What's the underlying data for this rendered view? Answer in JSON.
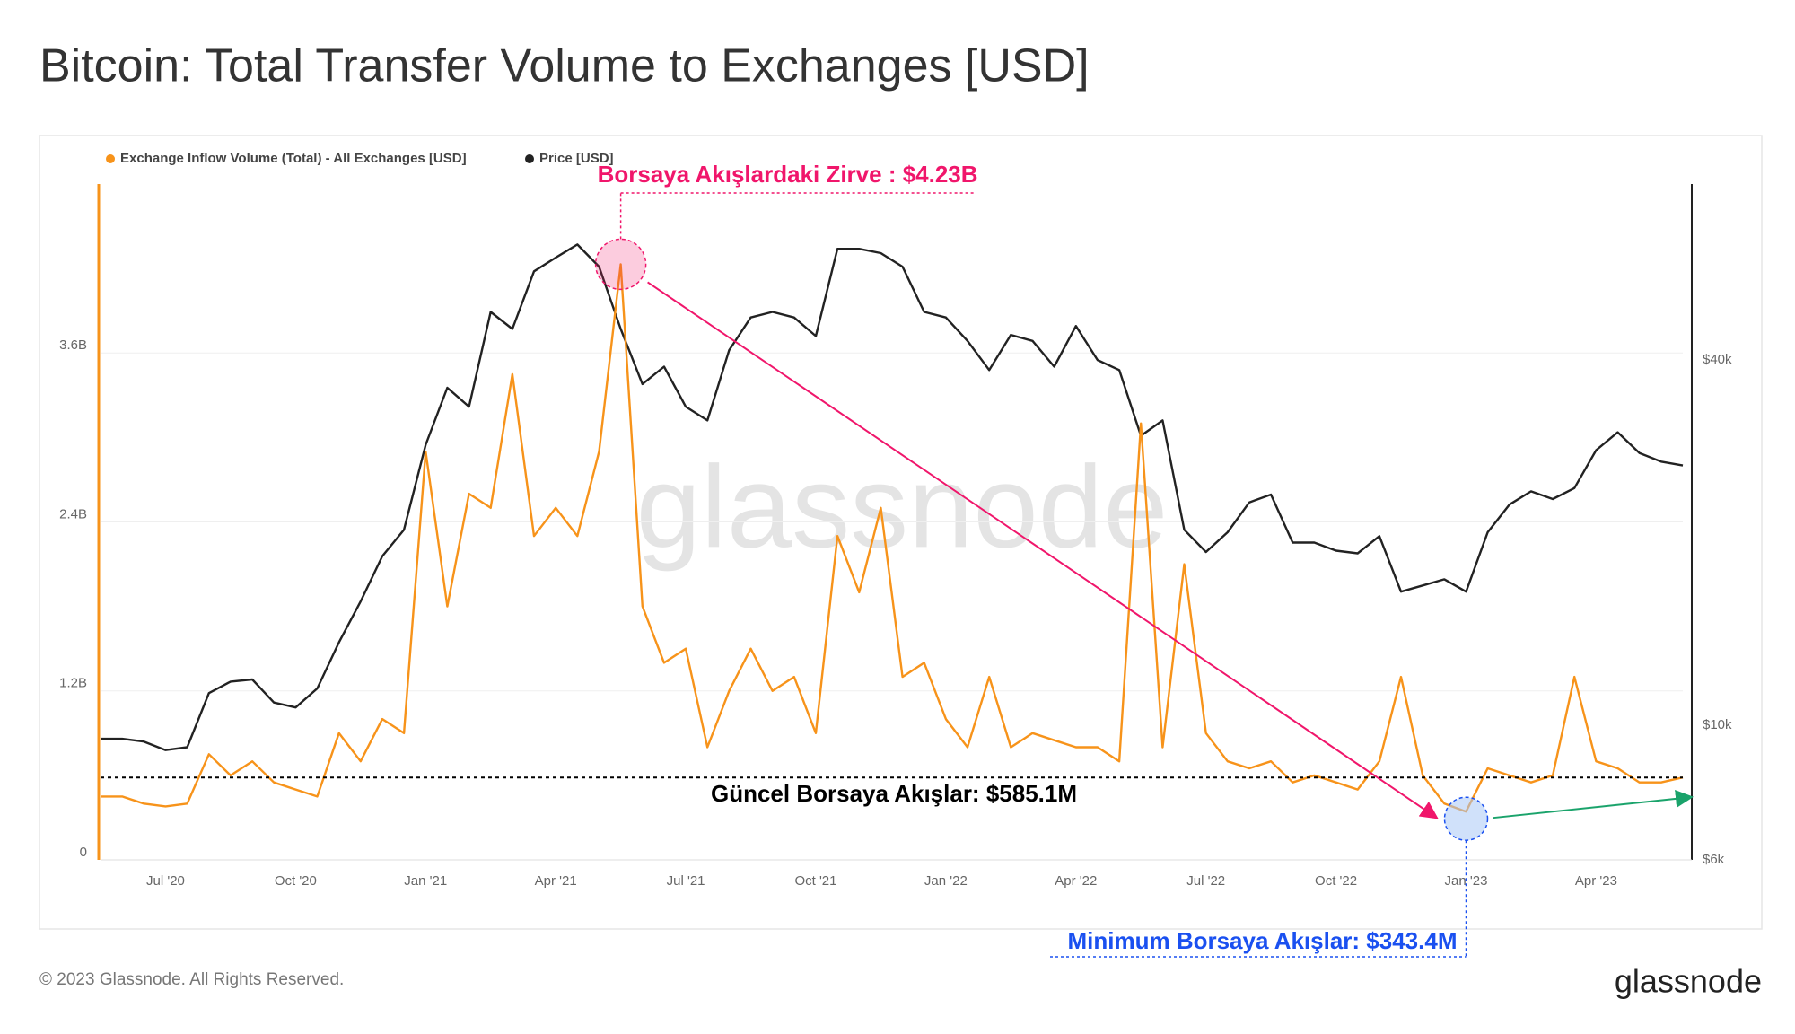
{
  "chart_data": {
    "type": "line",
    "title": "Bitcoin: Total Transfer Volume to Exchanges [USD]",
    "footer": "© 2023 Glassnode. All Rights Reserved.",
    "logo": "glassnode",
    "watermark": "glassnode",
    "categories": [
      null,
      null,
      null,
      "Jul '20",
      null,
      null,
      null,
      null,
      null,
      "Oct '20",
      null,
      null,
      null,
      null,
      null,
      "Jan '21",
      null,
      null,
      null,
      null,
      null,
      "Apr '21",
      null,
      null,
      null,
      null,
      null,
      "Jul '21",
      null,
      null,
      null,
      null,
      null,
      "Oct '21",
      null,
      null,
      null,
      null,
      null,
      "Jan '22",
      null,
      null,
      null,
      null,
      null,
      "Apr '22",
      null,
      null,
      null,
      null,
      null,
      "Jul '22",
      null,
      null,
      null,
      null,
      null,
      "Oct '22",
      null,
      null,
      null,
      null,
      null,
      "Jan '23",
      null,
      null,
      null,
      null,
      null,
      "Apr '23",
      null,
      null,
      null,
      null
    ],
    "series": [
      {
        "name": "Exchange Inflow Volume (Total) - All Exchanges [USD]",
        "color": "#f7931a",
        "values": [
          0.45,
          0.45,
          0.4,
          0.38,
          0.4,
          0.75,
          0.6,
          0.7,
          0.55,
          0.5,
          0.45,
          0.9,
          0.7,
          1.0,
          0.9,
          2.9,
          1.8,
          2.6,
          2.5,
          3.45,
          2.3,
          2.5,
          2.3,
          2.9,
          4.23,
          1.8,
          1.4,
          1.5,
          0.8,
          1.2,
          1.5,
          1.2,
          1.3,
          0.9,
          2.3,
          1.9,
          2.5,
          1.3,
          1.4,
          1.0,
          0.8,
          1.3,
          0.8,
          0.9,
          0.85,
          0.8,
          0.8,
          0.7,
          3.1,
          0.8,
          2.1,
          0.9,
          0.7,
          0.65,
          0.7,
          0.55,
          0.6,
          0.55,
          0.5,
          0.7,
          1.3,
          0.6,
          0.4,
          0.343,
          0.65,
          0.6,
          0.55,
          0.6,
          1.3,
          0.7,
          0.65,
          0.55,
          0.55,
          0.585
        ]
      },
      {
        "name": "Price [USD]",
        "color": "#222222",
        "axis": "y2",
        "values": [
          9500,
          9500,
          9400,
          9100,
          9200,
          11300,
          11800,
          11900,
          10900,
          10700,
          11500,
          13700,
          16000,
          19000,
          21000,
          29000,
          36000,
          33500,
          48000,
          45000,
          56000,
          59000,
          62000,
          57000,
          45000,
          36500,
          39000,
          33500,
          31800,
          41500,
          47000,
          48000,
          47000,
          43800,
          61000,
          61000,
          60000,
          57000,
          48000,
          47000,
          43000,
          38500,
          44000,
          43000,
          39000,
          45500,
          40000,
          38500,
          30000,
          31800,
          21000,
          19300,
          20800,
          23300,
          24000,
          20000,
          20000,
          19400,
          19200,
          20500,
          16600,
          17000,
          17400,
          16600,
          20800,
          23100,
          24300,
          23600,
          24600,
          28400,
          30400,
          28100,
          27200,
          26800
        ]
      }
    ],
    "ylim": [
      0,
      4.8
    ],
    "yticks": [
      0,
      {
        "value": 1.2,
        "label": "1.2B"
      },
      {
        "value": 2.4,
        "label": "2.4B"
      },
      {
        "value": 3.6,
        "label": "3.6B"
      }
    ],
    "y2lim": [
      6000,
      78000
    ],
    "y2scale": "log",
    "y2ticks": [
      {
        "value": 6000,
        "label": "$6k"
      },
      {
        "value": 10000,
        "label": "$10k"
      },
      {
        "value": 40000,
        "label": "$40k"
      }
    ],
    "grid": true,
    "annotations": [
      {
        "text": "Borsaya Akışlardaki Zirve : $4.23B",
        "color": "#f0166b"
      },
      {
        "text": "Güncel Borsaya Akışlar: $585.1M",
        "color": "#000000"
      },
      {
        "text": "Minimum Borsaya Akışlar: $343.4M",
        "color": "#1a50f0"
      }
    ]
  }
}
